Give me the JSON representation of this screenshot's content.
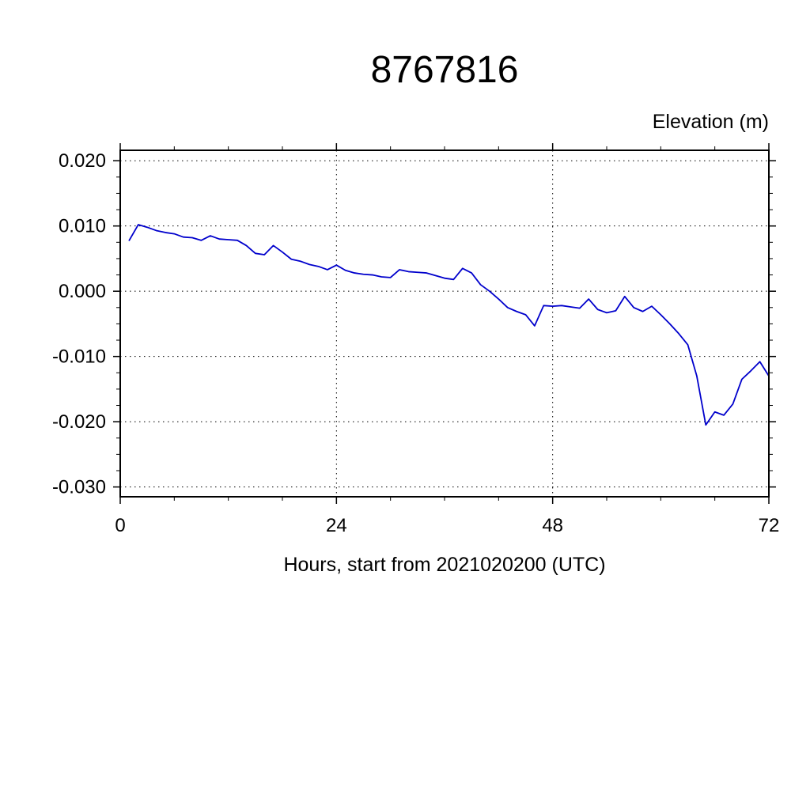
{
  "page": {
    "background": "#ffffff"
  },
  "chart_data": {
    "type": "line",
    "title": "8767816",
    "ylabel": "Elevation (m)",
    "xlabel": "Hours, start from 2021020200 (UTC)",
    "xlim": [
      0,
      72
    ],
    "ylim": [
      -0.0315,
      0.0216
    ],
    "grid": true,
    "grid_style": "dotted",
    "x_ticks": [
      {
        "v": 0,
        "label": "0"
      },
      {
        "v": 24,
        "label": "24"
      },
      {
        "v": 48,
        "label": "48"
      },
      {
        "v": 72,
        "label": "72"
      }
    ],
    "y_ticks": [
      {
        "v": 0.02,
        "label": "0.020"
      },
      {
        "v": 0.01,
        "label": "0.010"
      },
      {
        "v": 0.0,
        "label": "0.000"
      },
      {
        "v": -0.01,
        "label": "-0.010"
      },
      {
        "v": -0.02,
        "label": "-0.020"
      },
      {
        "v": -0.03,
        "label": "-0.030"
      }
    ],
    "x_minor_step": 6,
    "y_minor_step": 0.0025,
    "series": [
      {
        "name": "elevation",
        "color": "#0000cc",
        "x": [
          1,
          2,
          3,
          4,
          5,
          6,
          7,
          8,
          9,
          10,
          11,
          12,
          13,
          14,
          15,
          16,
          17,
          18,
          19,
          20,
          21,
          22,
          23,
          24,
          25,
          26,
          27,
          28,
          29,
          30,
          31,
          32,
          33,
          34,
          35,
          36,
          37,
          38,
          39,
          40,
          41,
          42,
          43,
          44,
          45,
          46,
          47,
          48,
          49,
          50,
          51,
          52,
          53,
          54,
          55,
          56,
          57,
          58,
          59,
          60,
          61,
          62,
          63,
          64,
          65,
          66,
          67,
          68,
          69,
          70,
          71,
          72
        ],
        "values": [
          0.0078,
          0.0102,
          0.0098,
          0.0093,
          0.009,
          0.0088,
          0.0083,
          0.0082,
          0.0078,
          0.0085,
          0.008,
          0.0079,
          0.0078,
          0.007,
          0.0058,
          0.0056,
          0.007,
          0.006,
          0.0049,
          0.0046,
          0.0041,
          0.0038,
          0.0033,
          0.004,
          0.0032,
          0.0028,
          0.0026,
          0.0025,
          0.0022,
          0.0021,
          0.0033,
          0.003,
          0.0029,
          0.0028,
          0.0024,
          0.002,
          0.0018,
          0.0035,
          0.0028,
          0.001,
          0.0,
          -0.0012,
          -0.0025,
          -0.0031,
          -0.0036,
          -0.0053,
          -0.0022,
          -0.0023,
          -0.0022,
          -0.0024,
          -0.0026,
          -0.0012,
          -0.0028,
          -0.0033,
          -0.003,
          -0.0008,
          -0.0025,
          -0.0031,
          -0.0023,
          -0.0036,
          -0.005,
          -0.0065,
          -0.0082,
          -0.013,
          -0.0205,
          -0.0185,
          -0.019,
          -0.0173,
          -0.0135,
          -0.0122,
          -0.0108,
          -0.013
        ]
      }
    ]
  }
}
